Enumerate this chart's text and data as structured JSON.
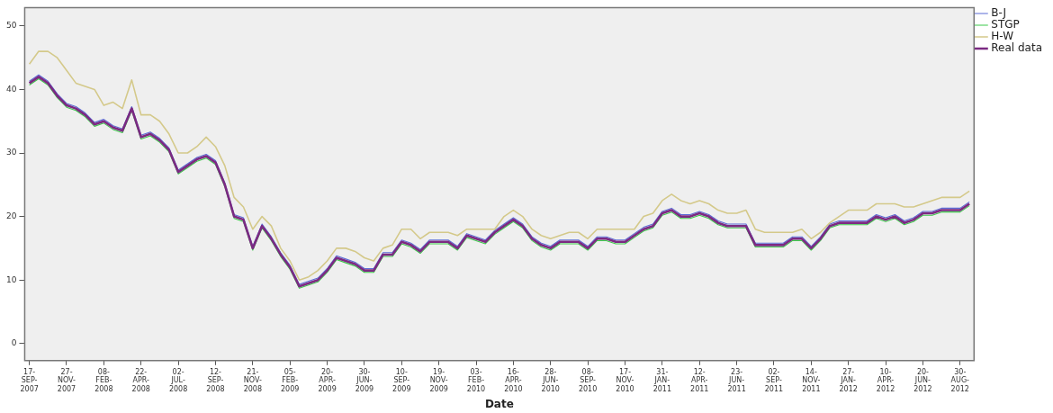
{
  "chart_data": {
    "type": "line",
    "xlabel": "Date",
    "legend": "top right",
    "grid": false,
    "marker": "none",
    "line_style": "solid",
    "categories": [
      "17-SEP-2007",
      null,
      null,
      null,
      "27-NOV-2007",
      null,
      null,
      null,
      "08-FEB-2008",
      null,
      null,
      null,
      "22-APR-2008",
      null,
      null,
      null,
      "02-JUL-2008",
      null,
      null,
      null,
      "12-SEP-2008",
      null,
      null,
      null,
      "21-NOV-2008",
      null,
      null,
      null,
      "05-FEB-2009",
      null,
      null,
      null,
      "20-APR-2009",
      null,
      null,
      null,
      "30-JUN-2009",
      null,
      null,
      null,
      "10-SEP-2009",
      null,
      null,
      null,
      "19-NOV-2009",
      null,
      null,
      null,
      "03-FEB-2010",
      null,
      null,
      null,
      "16-APR-2010",
      null,
      null,
      null,
      "28-JUN-2010",
      null,
      null,
      null,
      "08-SEP-2010",
      null,
      null,
      null,
      "17-NOV-2010",
      null,
      null,
      null,
      "31-JAN-2011",
      null,
      null,
      null,
      "12-APR-2011",
      null,
      null,
      null,
      "23-JUN-2011",
      null,
      null,
      null,
      "02-SEP-2011",
      null,
      null,
      null,
      "14-NOV-2011",
      null,
      null,
      null,
      "27-JAN-2012",
      null,
      null,
      null,
      "10-APR-2012",
      null,
      null,
      null,
      "20-JUN-2012",
      null,
      null,
      null,
      "30-AUG-2012",
      null
    ],
    "ylim": [
      -2.7,
      52.9
    ],
    "yticks": [
      0,
      10,
      20,
      30,
      40,
      50
    ],
    "series": [
      {
        "name": "B-J",
        "color": "#5b6bd6",
        "values": [
          41.3,
          42.3,
          41.3,
          39.3,
          37.8,
          37.3,
          36.3,
          34.8,
          35.3,
          34.3,
          33.8,
          37.3,
          32.8,
          33.3,
          32.3,
          30.8,
          27.3,
          28.3,
          29.3,
          29.8,
          28.8,
          25.3,
          20.3,
          19.8,
          15.3,
          18.8,
          16.8,
          14.3,
          12.3,
          9.3,
          9.8,
          10.3,
          11.8,
          13.8,
          13.3,
          12.8,
          11.8,
          11.8,
          14.3,
          14.3,
          16.3,
          15.8,
          14.8,
          16.3,
          16.3,
          16.3,
          15.3,
          17.3,
          16.8,
          16.3,
          17.8,
          18.8,
          19.8,
          18.8,
          16.8,
          15.8,
          15.3,
          16.3,
          16.3,
          16.3,
          15.3,
          16.8,
          16.8,
          16.3,
          16.3,
          17.3,
          18.3,
          18.8,
          20.8,
          21.3,
          20.3,
          20.3,
          20.8,
          20.3,
          19.3,
          18.8,
          18.8,
          18.8,
          15.8,
          15.8,
          15.8,
          15.8,
          16.8,
          16.8,
          15.3,
          16.8,
          18.8,
          19.3,
          19.3,
          19.3,
          19.3,
          20.3,
          19.8,
          20.3,
          19.3,
          19.8,
          20.8,
          20.8,
          21.3,
          21.3,
          21.3,
          22.3
        ]
      },
      {
        "name": "STGP",
        "color": "#3cc94a",
        "values": [
          40.7,
          41.7,
          40.7,
          38.7,
          37.2,
          36.7,
          35.7,
          34.2,
          34.7,
          33.7,
          33.2,
          36.7,
          32.2,
          32.7,
          31.7,
          30.2,
          26.7,
          27.7,
          28.7,
          29.2,
          28.2,
          24.7,
          19.7,
          19.2,
          14.7,
          18.2,
          16.2,
          13.7,
          11.7,
          8.7,
          9.2,
          9.7,
          11.2,
          13.2,
          12.7,
          12.2,
          11.2,
          11.2,
          13.7,
          13.7,
          15.7,
          15.2,
          14.2,
          15.7,
          15.7,
          15.7,
          14.7,
          16.7,
          16.2,
          15.7,
          17.2,
          18.2,
          19.2,
          18.2,
          16.2,
          15.2,
          14.7,
          15.7,
          15.7,
          15.7,
          14.7,
          16.2,
          16.2,
          15.7,
          15.7,
          16.7,
          17.7,
          18.2,
          20.2,
          20.7,
          19.7,
          19.7,
          20.2,
          19.7,
          18.7,
          18.2,
          18.2,
          18.2,
          15.2,
          15.2,
          15.2,
          15.2,
          16.2,
          16.2,
          14.7,
          16.2,
          18.2,
          18.7,
          18.7,
          18.7,
          18.7,
          19.7,
          19.2,
          19.7,
          18.7,
          19.2,
          20.2,
          20.2,
          20.7,
          20.7,
          20.7,
          21.7
        ]
      },
      {
        "name": "H-W",
        "color": "#d4c98a",
        "values": [
          44,
          46,
          46,
          45,
          43,
          41,
          40.5,
          40,
          37.5,
          38,
          37,
          41.5,
          36,
          36,
          35,
          33,
          30,
          30,
          31,
          32.5,
          31,
          28,
          23,
          21.5,
          18,
          20,
          18.5,
          15,
          13,
          10,
          10.5,
          11.5,
          13,
          15,
          15,
          14.5,
          13.5,
          13,
          15,
          15.5,
          18,
          18,
          16.5,
          17.5,
          17.5,
          17.5,
          17,
          18,
          18,
          18,
          18,
          20,
          21,
          20,
          18,
          17,
          16.5,
          17,
          17.5,
          17.5,
          16.5,
          18,
          18,
          18,
          18,
          18,
          20,
          20.5,
          22.5,
          23.5,
          22.5,
          22,
          22.5,
          22,
          21,
          20.5,
          20.5,
          21,
          18,
          17.5,
          17.5,
          17.5,
          17.5,
          18,
          16.5,
          17.5,
          19,
          20,
          21,
          21,
          21,
          22,
          22,
          22,
          21.5,
          21.5,
          22,
          22.5,
          23,
          23,
          23,
          24
        ]
      },
      {
        "name": "Real data",
        "color": "#7b2a82",
        "values": [
          41,
          42,
          41,
          39,
          37.5,
          37,
          36,
          34.5,
          35,
          34,
          33.5,
          37,
          32.5,
          33,
          32,
          30.5,
          27,
          28,
          29,
          29.5,
          28.5,
          25,
          20,
          19.5,
          15,
          18.5,
          16.5,
          14,
          12,
          9,
          9.5,
          10,
          11.5,
          13.5,
          13,
          12.5,
          11.5,
          11.5,
          14,
          14,
          16,
          15.5,
          14.5,
          16,
          16,
          16,
          15,
          17,
          16.5,
          16,
          17.5,
          18.5,
          19.5,
          18.5,
          16.5,
          15.5,
          15,
          16,
          16,
          16,
          15,
          16.5,
          16.5,
          16,
          16,
          17,
          18,
          18.5,
          20.5,
          21,
          20,
          20,
          20.5,
          20,
          19,
          18.5,
          18.5,
          18.5,
          15.5,
          15.5,
          15.5,
          15.5,
          16.5,
          16.5,
          15,
          16.5,
          18.5,
          19,
          19,
          19,
          19,
          20,
          19.5,
          20,
          19,
          19.5,
          20.5,
          20.5,
          21,
          21,
          21,
          22
        ]
      }
    ]
  }
}
